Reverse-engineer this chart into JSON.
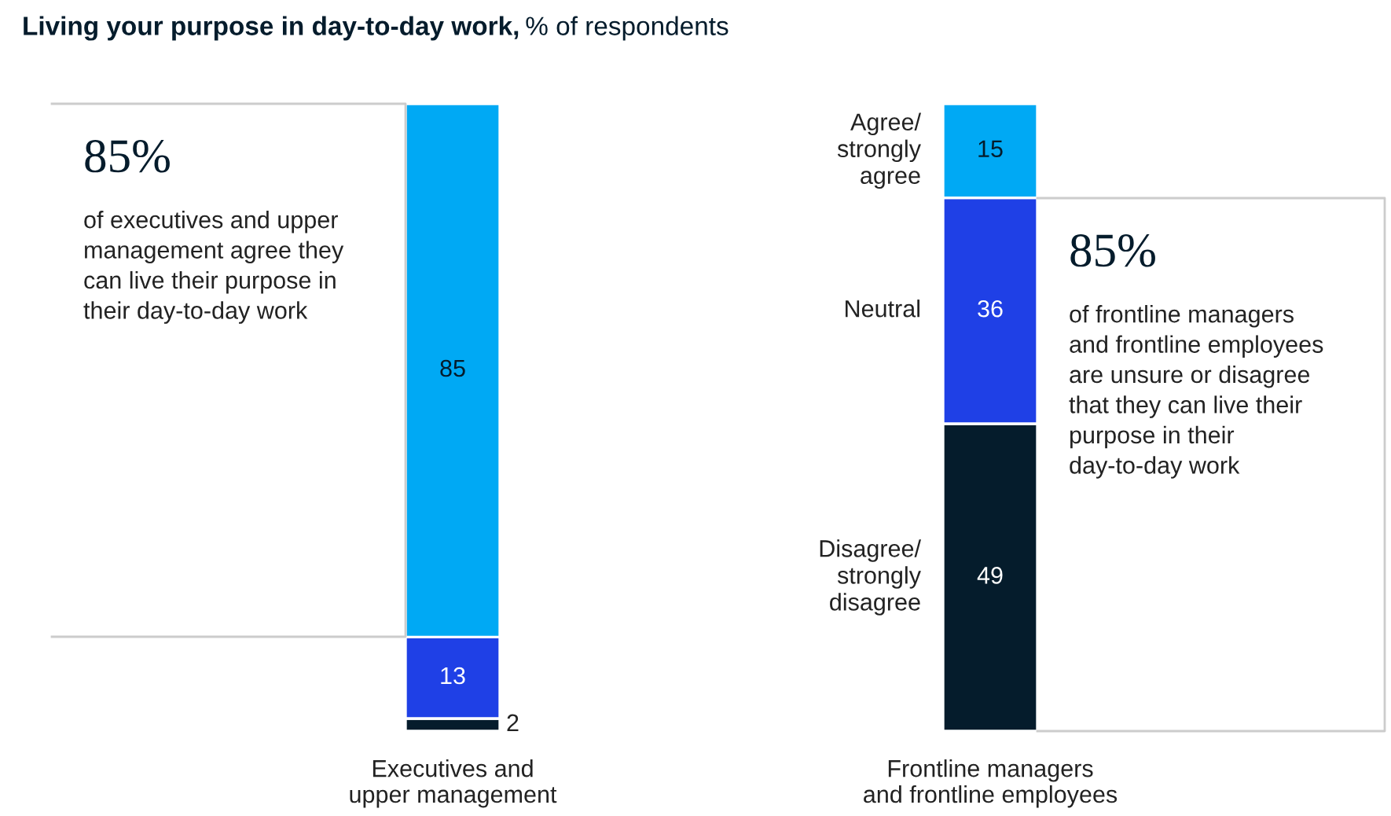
{
  "chart_data": {
    "type": "bar",
    "stacked": true,
    "title": "Living your purpose in day-to-day work,",
    "subtitle": "% of respondents",
    "categories": [
      "Executives and\nupper management",
      "Frontline managers\nand frontline employees"
    ],
    "series": [
      {
        "name": "Disagree/\nstrongly\ndisagree",
        "color": "#051c2c",
        "values": [
          2,
          49
        ]
      },
      {
        "name": "Neutral",
        "color": "#1f40e6",
        "values": [
          13,
          36
        ]
      },
      {
        "name": "Agree/\nstrongly\nagree",
        "color": "#00a9f4",
        "values": [
          85,
          15
        ]
      }
    ],
    "data_labels": true,
    "annotations": [
      "85%",
      "of executives and upper\nmanagement agree they\ncan live their purpose in\ntheir day-to-day work",
      "85%",
      "of frontline managers\nand frontline employees\nare unsure or disagree\nthat they can live their\npurpose in their\nday-to-day work"
    ]
  }
}
